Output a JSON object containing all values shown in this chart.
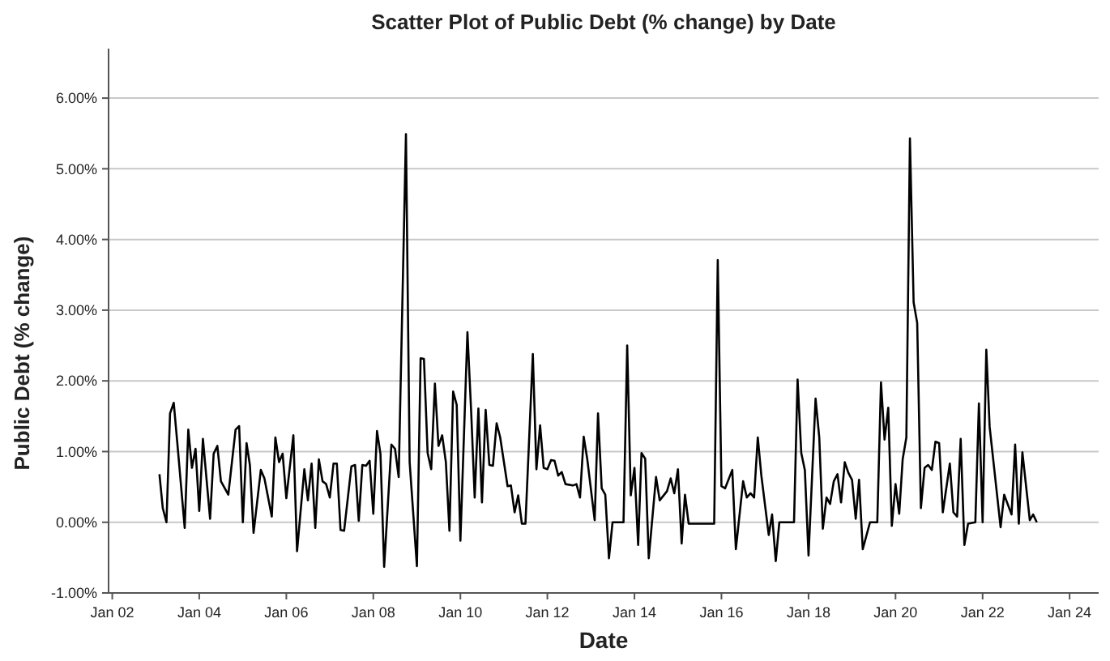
{
  "chart_data": {
    "type": "line",
    "title": "Scatter Plot of Public Debt (% change) by Date",
    "xlabel": "Date",
    "ylabel": "Public Debt (% change)",
    "xlim": [
      "2001-12",
      "2024-09"
    ],
    "xticks": [
      {
        "value": "2002",
        "label": "Jan 02"
      },
      {
        "value": "2004",
        "label": "Jan 04"
      },
      {
        "value": "2006",
        "label": "Jan 06"
      },
      {
        "value": "2008",
        "label": "Jan 08"
      },
      {
        "value": "2010",
        "label": "Jan 10"
      },
      {
        "value": "2012",
        "label": "Jan 12"
      },
      {
        "value": "2014",
        "label": "Jan 14"
      },
      {
        "value": "2016",
        "label": "Jan 16"
      },
      {
        "value": "2018",
        "label": "Jan 18"
      },
      {
        "value": "2020",
        "label": "Jan 20"
      },
      {
        "value": "2022",
        "label": "Jan 22"
      },
      {
        "value": "2024",
        "label": "Jan 24"
      }
    ],
    "ylim": [
      -1,
      6.7
    ],
    "yticks": [
      {
        "value": -1,
        "label": "-1.00%"
      },
      {
        "value": 0,
        "label": "0.00%"
      },
      {
        "value": 1,
        "label": "1.00%"
      },
      {
        "value": 2,
        "label": "2.00%"
      },
      {
        "value": 3,
        "label": "3.00%"
      },
      {
        "value": 4,
        "label": "4.00%"
      },
      {
        "value": 5,
        "label": "5.00%"
      },
      {
        "value": 6,
        "label": "6.00%"
      }
    ],
    "grid": "y",
    "x": [
      "2003-02",
      "2003-03",
      "2003-04",
      "2003-05",
      "2003-06",
      "2003-07",
      "2003-09",
      "2003-10",
      "2003-11",
      "2003-12",
      "2004-01",
      "2004-02",
      "2004-04",
      "2004-05",
      "2004-06",
      "2004-07",
      "2004-09",
      "2004-11",
      "2004-12",
      "2005-01",
      "2005-02",
      "2005-03",
      "2005-04",
      "2005-06",
      "2005-07",
      "2005-09",
      "2005-10",
      "2005-11",
      "2005-12",
      "2006-01",
      "2006-03",
      "2006-04",
      "2006-06",
      "2006-07",
      "2006-08",
      "2006-09",
      "2006-10",
      "2006-11",
      "2006-12",
      "2007-01",
      "2007-02",
      "2007-03",
      "2007-04",
      "2007-05",
      "2007-07",
      "2007-08",
      "2007-09",
      "2007-10",
      "2007-11",
      "2007-12",
      "2008-01",
      "2008-02",
      "2008-03",
      "2008-04",
      "2008-06",
      "2008-07",
      "2008-08",
      "2008-10",
      "2008-11",
      "2009-01",
      "2009-02",
      "2009-03",
      "2009-04",
      "2009-05",
      "2009-06",
      "2009-07",
      "2009-08",
      "2009-09",
      "2009-10",
      "2009-11",
      "2009-12",
      "2010-01",
      "2010-03",
      "2010-04",
      "2010-05",
      "2010-06",
      "2010-07",
      "2010-08",
      "2010-09",
      "2010-10",
      "2010-11",
      "2010-12",
      "2011-02",
      "2011-03",
      "2011-04",
      "2011-05",
      "2011-06",
      "2011-07",
      "2011-09",
      "2011-10",
      "2011-11",
      "2011-12",
      "2012-01",
      "2012-02",
      "2012-03",
      "2012-04",
      "2012-05",
      "2012-06",
      "2012-08",
      "2012-09",
      "2012-10",
      "2012-11",
      "2012-12",
      "2013-02",
      "2013-03",
      "2013-04",
      "2013-05",
      "2013-06",
      "2013-07",
      "2013-10",
      "2013-11",
      "2013-12",
      "2014-01",
      "2014-02",
      "2014-03",
      "2014-04",
      "2014-05",
      "2014-07",
      "2014-08",
      "2014-10",
      "2014-11",
      "2014-12",
      "2015-01",
      "2015-02",
      "2015-03",
      "2015-04",
      "2015-11",
      "2015-12",
      "2016-01",
      "2016-02",
      "2016-04",
      "2016-05",
      "2016-07",
      "2016-08",
      "2016-09",
      "2016-10",
      "2016-11",
      "2016-12",
      "2017-02",
      "2017-03",
      "2017-04",
      "2017-05",
      "2017-09",
      "2017-10",
      "2017-11",
      "2017-12",
      "2018-01",
      "2018-03",
      "2018-04",
      "2018-05",
      "2018-06",
      "2018-07",
      "2018-08",
      "2018-09",
      "2018-10",
      "2018-11",
      "2018-12",
      "2019-01",
      "2019-02",
      "2019-03",
      "2019-04",
      "2019-06",
      "2019-08",
      "2019-09",
      "2019-10",
      "2019-11",
      "2019-12",
      "2020-01",
      "2020-02",
      "2020-03",
      "2020-04",
      "2020-05",
      "2020-06",
      "2020-07",
      "2020-08",
      "2020-09",
      "2020-10",
      "2020-11",
      "2020-12",
      "2021-01",
      "2021-02",
      "2021-04",
      "2021-05",
      "2021-06",
      "2021-07",
      "2021-08",
      "2021-09",
      "2021-11",
      "2021-12",
      "2022-01",
      "2022-02",
      "2022-03",
      "2022-06",
      "2022-07",
      "2022-09",
      "2022-10",
      "2022-11",
      "2022-12",
      "2023-02",
      "2023-03",
      "2023-04"
    ],
    "series": [
      {
        "color": "#000000",
        "values": [
          0.68,
          0.2,
          0.0,
          1.54,
          1.69,
          1.12,
          -0.08,
          1.31,
          0.77,
          1.04,
          0.16,
          1.18,
          0.05,
          0.97,
          1.08,
          0.58,
          0.39,
          1.31,
          1.36,
          0.0,
          1.12,
          0.81,
          -0.15,
          0.74,
          0.62,
          0.08,
          1.2,
          0.85,
          0.97,
          0.34,
          1.23,
          -0.41,
          0.75,
          0.31,
          0.83,
          -0.08,
          0.89,
          0.58,
          0.54,
          0.35,
          0.83,
          0.83,
          -0.11,
          -0.12,
          0.79,
          0.81,
          0.02,
          0.81,
          0.8,
          0.87,
          0.12,
          1.29,
          0.97,
          -0.63,
          1.1,
          1.04,
          0.64,
          5.49,
          0.85,
          -0.62,
          2.32,
          2.31,
          0.98,
          0.75,
          1.96,
          1.08,
          1.23,
          0.85,
          -0.12,
          1.85,
          1.66,
          -0.26,
          2.69,
          1.58,
          0.35,
          1.61,
          0.28,
          1.59,
          0.81,
          0.8,
          1.4,
          1.2,
          0.51,
          0.52,
          0.14,
          0.38,
          -0.02,
          -0.02,
          2.38,
          0.75,
          1.37,
          0.77,
          0.75,
          0.88,
          0.87,
          0.66,
          0.71,
          0.54,
          0.52,
          0.54,
          0.35,
          1.21,
          0.89,
          0.03,
          1.54,
          0.48,
          0.39,
          -0.51,
          0.0,
          0.0,
          2.5,
          0.38,
          0.77,
          -0.32,
          0.98,
          0.9,
          -0.51,
          0.64,
          0.31,
          0.44,
          0.62,
          0.41,
          0.75,
          -0.3,
          0.39,
          -0.02,
          -0.02,
          3.71,
          0.51,
          0.48,
          0.74,
          -0.38,
          0.58,
          0.35,
          0.41,
          0.35,
          1.2,
          0.66,
          -0.18,
          0.11,
          -0.55,
          0.0,
          0.0,
          2.02,
          0.98,
          0.74,
          -0.47,
          1.75,
          1.2,
          -0.09,
          0.35,
          0.26,
          0.58,
          0.68,
          0.28,
          0.85,
          0.7,
          0.6,
          0.05,
          0.6,
          -0.38,
          0.0,
          0.0,
          1.98,
          1.17,
          1.62,
          -0.05,
          0.54,
          0.12,
          0.89,
          1.2,
          5.43,
          3.11,
          2.82,
          0.2,
          0.77,
          0.81,
          0.74,
          1.14,
          1.12,
          0.14,
          0.83,
          0.14,
          0.08,
          1.18,
          -0.32,
          -0.02,
          0.0,
          1.68,
          0.0,
          2.44,
          1.35,
          -0.07,
          0.39,
          0.11,
          1.1,
          -0.02,
          0.99,
          0.03,
          0.11,
          0.0
        ]
      }
    ]
  }
}
